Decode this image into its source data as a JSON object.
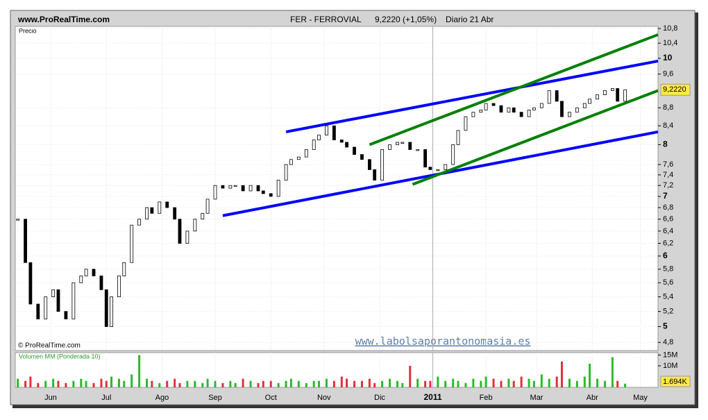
{
  "header": {
    "site": "www.ProRealTime.com",
    "symbol": "FER - FERROVIAL",
    "quote": "9,2220 (+1,05%)",
    "period": "Diario  21 Abr"
  },
  "chart_data": [
    {
      "type": "candlestick",
      "label": "Precio",
      "copyright": "© ProRealTime.com",
      "watermark": "www.labolsaporantonomasia.es",
      "last_label": "9,2220",
      "log_scale": true,
      "grid": true,
      "up_color": "#ffffff",
      "down_color": "#000000",
      "x": [
        1,
        4,
        6,
        9,
        12,
        15,
        17,
        20,
        23,
        26,
        28,
        31,
        34,
        36,
        38,
        41,
        43,
        46,
        49,
        52,
        54,
        57,
        60,
        63,
        65,
        68,
        71,
        74,
        76,
        79,
        82,
        85,
        87,
        90,
        93,
        96,
        98,
        101,
        104,
        107,
        109,
        112,
        115,
        118,
        120,
        123,
        126,
        129,
        131,
        134,
        137,
        140,
        142,
        145,
        148,
        151,
        153,
        156,
        159,
        162,
        164,
        167,
        170,
        173,
        175,
        178,
        181,
        184,
        186,
        189,
        192,
        195,
        197,
        200,
        203,
        205,
        208,
        211,
        214,
        216,
        219,
        222,
        225,
        227,
        230,
        233,
        236,
        238,
        241
      ],
      "values": [
        6.6,
        5.9,
        5.3,
        5.1,
        5.4,
        5.5,
        5.2,
        5.1,
        5.6,
        5.7,
        5.8,
        5.7,
        5.5,
        5.0,
        5.4,
        5.7,
        5.9,
        6.5,
        6.6,
        6.8,
        6.7,
        6.9,
        6.8,
        6.6,
        6.2,
        6.4,
        6.6,
        6.7,
        6.95,
        7.2,
        7.15,
        7.2,
        7.2,
        7.1,
        7.2,
        7.1,
        7.05,
        7.0,
        7.3,
        7.6,
        7.7,
        7.75,
        7.9,
        8.1,
        8.2,
        8.4,
        8.1,
        8.05,
        7.95,
        7.8,
        7.7,
        7.5,
        7.3,
        7.9,
        8.0,
        8.05,
        8.05,
        7.9,
        7.9,
        7.55,
        7.5,
        7.5,
        7.6,
        8.0,
        8.3,
        8.6,
        8.7,
        8.75,
        8.9,
        8.85,
        8.7,
        8.8,
        8.7,
        8.6,
        8.75,
        8.8,
        8.9,
        9.2,
        8.95,
        8.6,
        8.7,
        8.8,
        8.9,
        9.0,
        9.1,
        9.2,
        9.25,
        8.95,
        9.22
      ],
      "xlim": [
        0,
        254
      ],
      "xticks": [
        {
          "value": 14,
          "label": "Jun"
        },
        {
          "value": 36,
          "label": "Jul"
        },
        {
          "value": 58,
          "label": "Ago"
        },
        {
          "value": 79,
          "label": "Sep"
        },
        {
          "value": 101,
          "label": "Oct"
        },
        {
          "value": 122,
          "label": "Nov"
        },
        {
          "value": 144,
          "label": "Dic"
        },
        {
          "value": 165,
          "label": "2011"
        },
        {
          "value": 186,
          "label": "Feb"
        },
        {
          "value": 206,
          "label": "Mar"
        },
        {
          "value": 228,
          "label": "Abr"
        },
        {
          "value": 247,
          "label": "May"
        }
      ],
      "ylim": [
        4.7,
        10.86
      ],
      "yticks": [
        {
          "value": 4.8,
          "label": "4,8"
        },
        5,
        {
          "value": 5.2,
          "label": "5,2"
        },
        {
          "value": 5.4,
          "label": "5,4"
        },
        {
          "value": 5.6,
          "label": "5,6"
        },
        {
          "value": 5.8,
          "label": "5,8"
        },
        6,
        {
          "value": 6.2,
          "label": "6,2"
        },
        {
          "value": 6.4,
          "label": "6,4"
        },
        {
          "value": 6.6,
          "label": "6,6"
        },
        {
          "value": 6.8,
          "label": "6,8"
        },
        7,
        {
          "value": 7.2,
          "label": "7,2"
        },
        {
          "value": 7.4,
          "label": "7,4"
        },
        {
          "value": 7.6,
          "label": "7,6"
        },
        8,
        {
          "value": 8.4,
          "label": "8,4"
        },
        {
          "value": 8.8,
          "label": "8,8"
        },
        {
          "value": 9.6,
          "label": "9,6"
        },
        10,
        {
          "value": 10.4,
          "label": "10,4"
        },
        {
          "value": 10.8,
          "label": "10,8"
        }
      ],
      "trendlines": [
        {
          "color": "#0000ff",
          "x": [
            107,
            254
          ],
          "y": [
            8.27,
            9.93
          ]
        },
        {
          "color": "#0000ff",
          "x": [
            82,
            254
          ],
          "y": [
            6.66,
            8.27
          ]
        },
        {
          "color": "#008000",
          "x": [
            140,
            254
          ],
          "y": [
            8.0,
            10.63
          ]
        },
        {
          "color": "#008000",
          "x": [
            157,
            254
          ],
          "y": [
            7.22,
            9.2
          ]
        }
      ]
    },
    {
      "type": "bar",
      "label": "Volumen MM (Ponderada 10)",
      "last_label": "1.694K",
      "up_color": "#2db82d",
      "down_color": "#e0303a",
      "values": [
        4,
        3,
        5,
        2,
        3,
        4,
        3,
        2,
        3,
        4,
        3,
        2,
        4,
        3,
        5,
        4,
        3,
        6,
        15,
        4,
        3,
        2,
        3,
        4,
        2,
        3,
        3,
        2,
        4,
        3,
        2,
        3,
        2,
        4,
        3,
        2,
        3,
        3,
        2,
        3,
        4,
        3,
        2,
        3,
        3,
        4,
        3,
        5,
        4,
        3,
        3,
        4,
        2,
        3,
        4,
        3,
        2,
        10,
        4,
        3,
        3,
        5,
        3,
        4,
        3,
        2,
        4,
        3,
        5,
        4,
        3,
        4,
        3,
        5,
        4,
        3,
        6,
        4,
        5,
        12,
        4,
        3,
        5,
        11,
        4,
        3,
        14,
        3,
        1.7
      ],
      "ylim": [
        0,
        16.1
      ],
      "yticks": [
        {
          "value": 10,
          "label": "10M"
        },
        {
          "value": 15,
          "label": "15M"
        }
      ]
    }
  ]
}
